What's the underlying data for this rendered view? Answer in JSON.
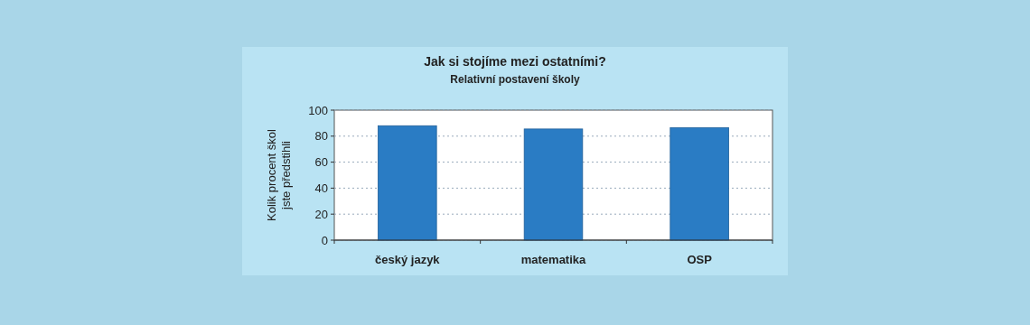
{
  "chart_data": {
    "type": "bar",
    "title": "Jak si stojíme mezi ostatními?",
    "subtitle": "Relativní postavení školy",
    "ylabel": "Kolik procent škol\njste předstihli",
    "categories": [
      "český jazyk",
      "matematika",
      "OSP"
    ],
    "values": [
      88,
      85.5,
      86.5
    ],
    "color": "#2a7cc4",
    "ylim": [
      0,
      100
    ],
    "yticks": [
      0,
      20,
      40,
      60,
      80,
      100
    ],
    "grid": "y"
  }
}
